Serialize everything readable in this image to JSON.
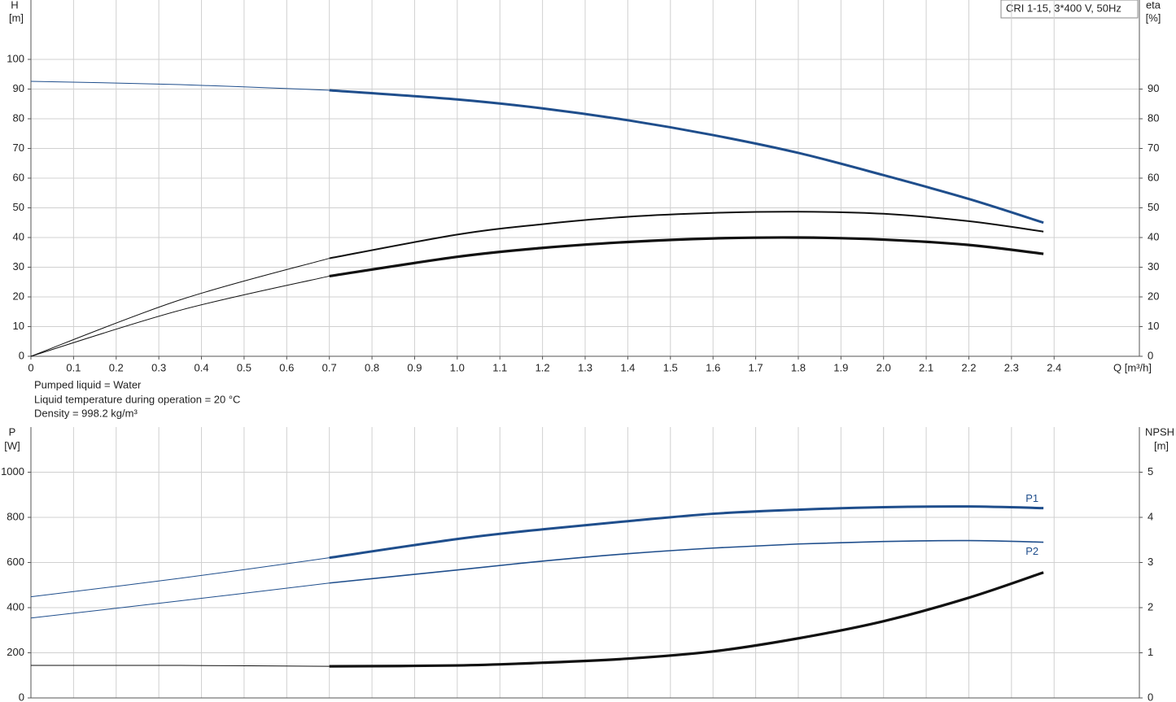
{
  "chart_data": [
    {
      "type": "line",
      "title": "CRI 1-15, 3*400 V, 50Hz",
      "y_label": [
        "H",
        "[m]"
      ],
      "y2_label": [
        "eta",
        "[%]"
      ],
      "x_label": "Q [m³/h]",
      "notes": [
        "Pumped liquid = Water",
        "Liquid temperature during operation = 20 °C",
        "Density = 998.2 kg/m³"
      ],
      "x": [
        0,
        0.35,
        0.7,
        1.0,
        1.2,
        1.4,
        1.6,
        1.8,
        2.0,
        2.2,
        2.375
      ],
      "xlim": [
        0,
        2.6
      ],
      "xticks": [
        0,
        0.1,
        0.2,
        0.3,
        0.4,
        0.5,
        0.6,
        0.7,
        0.8,
        0.9,
        {
          "value": 1,
          "label": "1.0"
        },
        1.1,
        1.2,
        1.3,
        1.4,
        1.5,
        1.6,
        1.7,
        1.8,
        1.9,
        {
          "value": 2,
          "label": "2.0"
        },
        2.1,
        2.2,
        2.3,
        2.4
      ],
      "ylim": [
        0,
        120
      ],
      "yticks": [
        0,
        10,
        20,
        30,
        40,
        50,
        60,
        70,
        80,
        90,
        100
      ],
      "y2lim": [
        0,
        120
      ],
      "y2ticks": [
        0,
        10,
        20,
        30,
        40,
        50,
        60,
        70,
        80,
        90
      ],
      "grid": true,
      "bold_from": 0.7,
      "series": [
        {
          "color": "#1f4e8c",
          "line_width": 3,
          "axis": "y",
          "values": [
            92.6,
            91.5,
            89.6,
            86.5,
            83.5,
            79.5,
            74.5,
            68.5,
            61,
            53,
            45
          ]
        },
        {
          "color": "#111111",
          "line_width": 2,
          "axis": "y2",
          "values": [
            0,
            19,
            33,
            41,
            44.5,
            47,
            48.3,
            48.7,
            48,
            45.5,
            42
          ]
        },
        {
          "color": "#111111",
          "line_width": 3.2,
          "axis": "y2",
          "values": [
            0,
            15.5,
            27,
            33.5,
            36.5,
            38.5,
            39.7,
            40,
            39.3,
            37.5,
            34.5
          ]
        }
      ]
    },
    {
      "type": "line",
      "y_label": [
        "P",
        "[W]"
      ],
      "y2_label": [
        "NPSH",
        "[m]"
      ],
      "x": [
        0,
        0.35,
        0.7,
        1.0,
        1.2,
        1.4,
        1.6,
        1.8,
        2.0,
        2.2,
        2.375
      ],
      "xlim": [
        0,
        2.6
      ],
      "ylim": [
        0,
        1200
      ],
      "yticks": [
        0,
        200,
        400,
        600,
        800,
        1000
      ],
      "y2lim": [
        0,
        6
      ],
      "y2ticks": [
        0,
        1,
        2,
        3,
        4,
        5
      ],
      "grid": true,
      "bold_from": 0.7,
      "series": [
        {
          "name": "P1",
          "color": "#1f4e8c",
          "line_width": 3,
          "axis": "y",
          "values": [
            448,
            530,
            621,
            704,
            747,
            783,
            816,
            834,
            845,
            848,
            841
          ]
        },
        {
          "name": "P2",
          "color": "#1f4e8c",
          "line_width": 1.6,
          "axis": "y",
          "values": [
            354,
            430,
            509,
            567,
            606,
            639,
            664,
            682,
            693,
            697,
            690
          ]
        },
        {
          "color": "#111111",
          "line_width": 3.2,
          "axis": "y2",
          "values": [
            0.72,
            0.72,
            0.7,
            0.72,
            0.78,
            0.87,
            1.03,
            1.32,
            1.7,
            2.22,
            2.78
          ]
        }
      ]
    }
  ]
}
